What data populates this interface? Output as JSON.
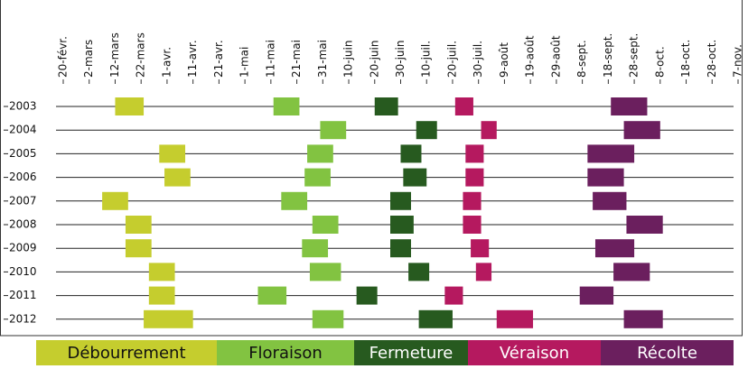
{
  "chart_data": {
    "type": "gantt",
    "categories": [
      "2003",
      "2004",
      "2005",
      "2006",
      "2007",
      "2008",
      "2009",
      "2010",
      "2011",
      "2012"
    ],
    "xlim": [
      51,
      301
    ],
    "xticks": [
      {
        "value": 51,
        "label": "20-févr."
      },
      {
        "value": 61,
        "label": "2-mars"
      },
      {
        "value": 71,
        "label": "12-mars"
      },
      {
        "value": 81,
        "label": "22-mars"
      },
      {
        "value": 91,
        "label": "1-avr."
      },
      {
        "value": 101,
        "label": "11-avr."
      },
      {
        "value": 111,
        "label": "21-avr."
      },
      {
        "value": 121,
        "label": "1-mai"
      },
      {
        "value": 131,
        "label": "11-mai"
      },
      {
        "value": 141,
        "label": "21-mai"
      },
      {
        "value": 151,
        "label": "31-mai"
      },
      {
        "value": 161,
        "label": "10-juin"
      },
      {
        "value": 171,
        "label": "20-juin"
      },
      {
        "value": 181,
        "label": "30-juin"
      },
      {
        "value": 191,
        "label": "10-juil."
      },
      {
        "value": 201,
        "label": "20-juil."
      },
      {
        "value": 211,
        "label": "30-juil."
      },
      {
        "value": 221,
        "label": "9-août"
      },
      {
        "value": 231,
        "label": "19-août"
      },
      {
        "value": 241,
        "label": "29-août"
      },
      {
        "value": 251,
        "label": "8-sept."
      },
      {
        "value": 261,
        "label": "18-sept."
      },
      {
        "value": 271,
        "label": "28-sept."
      },
      {
        "value": 281,
        "label": "8-oct."
      },
      {
        "value": 291,
        "label": "18-oct."
      },
      {
        "value": 301,
        "label": "28-oct."
      },
      {
        "value": 311,
        "label": "7-nov."
      }
    ],
    "series": [
      {
        "name": "Débourrement",
        "color": "#c5cd2e",
        "start": [
          71,
          null,
          88,
          90,
          66,
          75,
          75,
          84,
          84,
          82
        ],
        "end": [
          82,
          null,
          98,
          100,
          76,
          85,
          85,
          94,
          94,
          101
        ]
      },
      {
        "name": "Floraison",
        "color": "#82c341",
        "start": [
          132,
          150,
          145,
          144,
          135,
          147,
          143,
          146,
          126,
          147
        ],
        "end": [
          142,
          160,
          155,
          154,
          145,
          157,
          153,
          158,
          137,
          159
        ]
      },
      {
        "name": "Fermeture",
        "color": "#275a1f",
        "start": [
          171,
          187,
          181,
          182,
          177,
          177,
          177,
          184,
          164,
          188
        ],
        "end": [
          180,
          195,
          189,
          191,
          185,
          186,
          185,
          192,
          172,
          201
        ]
      },
      {
        "name": "Véraison",
        "color": "#b5195f",
        "start": [
          202,
          212,
          206,
          206,
          205,
          205,
          208,
          210,
          198,
          218
        ],
        "end": [
          209,
          218,
          213,
          213,
          212,
          212,
          215,
          216,
          205,
          232
        ]
      },
      {
        "name": "Récolte",
        "color": "#6b1f5e",
        "start": [
          262,
          267,
          253,
          253,
          255,
          268,
          256,
          263,
          250,
          267
        ],
        "end": [
          276,
          281,
          271,
          267,
          268,
          282,
          271,
          277,
          263,
          282
        ]
      }
    ]
  }
}
